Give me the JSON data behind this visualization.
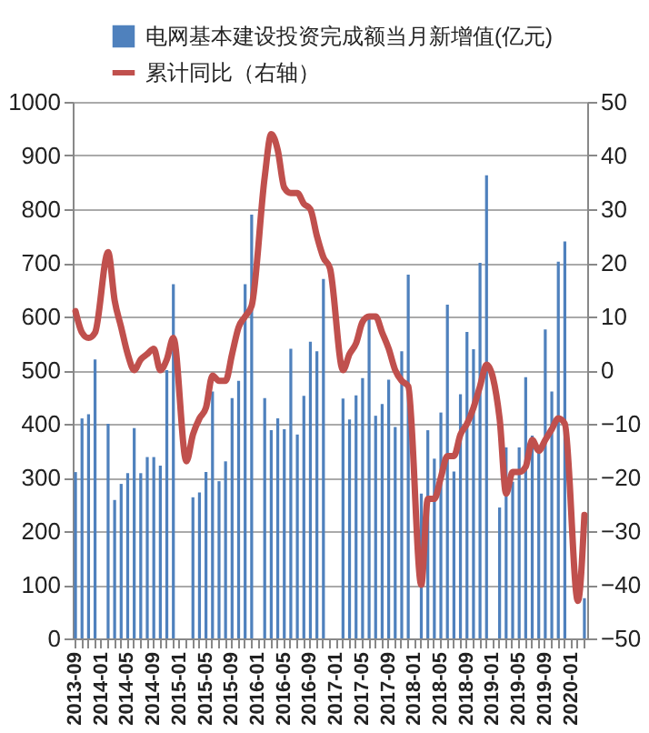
{
  "chart_data": {
    "type": "bar",
    "categories": [
      "2013-09",
      null,
      null,
      null,
      "2014-01",
      null,
      null,
      null,
      "2014-05",
      null,
      null,
      null,
      "2014-09",
      null,
      null,
      null,
      "2015-01",
      null,
      null,
      null,
      "2015-05",
      null,
      null,
      null,
      "2015-09",
      null,
      null,
      null,
      "2016-01",
      null,
      null,
      null,
      "2016-05",
      null,
      null,
      null,
      "2016-09",
      null,
      null,
      null,
      "2017-01",
      null,
      null,
      null,
      "2017-05",
      null,
      null,
      null,
      "2017-09",
      null,
      null,
      null,
      "2018-01",
      null,
      null,
      null,
      "2018-05",
      null,
      null,
      null,
      "2018-09",
      null,
      null,
      null,
      "2019-01",
      null,
      null,
      null,
      "2019-05",
      null,
      null,
      null,
      "2019-09",
      null,
      null,
      null,
      "2020-01",
      null,
      null
    ],
    "series": [
      {
        "name": "电网基本建设投资完成额当月新增值(亿元)",
        "color": "#4f81bd",
        "values": [
          310,
          410,
          418,
          520,
          null,
          400,
          258,
          288,
          308,
          392,
          308,
          338,
          338,
          322,
          500,
          660,
          null,
          null,
          263,
          272,
          310,
          460,
          293,
          330,
          448,
          480,
          660,
          790,
          null,
          448,
          388,
          410,
          390,
          540,
          380,
          452,
          553,
          535,
          670,
          null,
          null,
          447,
          408,
          453,
          485,
          603,
          415,
          437,
          482,
          394,
          535,
          678,
          null,
          270,
          388,
          335,
          421,
          622,
          311,
          455,
          571,
          539,
          700,
          863,
          null,
          244,
          356,
          292,
          356,
          487,
          378,
          351,
          576,
          460,
          702,
          740,
          null,
          null,
          75
        ]
      },
      {
        "name": "累计同比（右轴）",
        "type": "line",
        "axis": "y2",
        "color": "#c0504d",
        "values": [
          11,
          7,
          6,
          7,
          null,
          22,
          13,
          8,
          3,
          0,
          2,
          3,
          4,
          0,
          2,
          6,
          null,
          -17,
          -12,
          -9,
          -7,
          -1,
          -2,
          -2,
          3,
          8,
          10,
          12,
          null,
          36,
          44,
          41,
          34,
          33,
          33,
          31,
          30,
          25,
          21,
          19,
          null,
          0,
          3,
          5,
          9,
          10,
          10,
          7,
          4,
          0,
          -2,
          -3,
          null,
          -40,
          -24,
          -24,
          -20,
          -16,
          -16,
          -12,
          -10,
          -7,
          -3,
          1,
          null,
          -9,
          -23,
          -19,
          -19,
          -18,
          -13,
          -15,
          -13,
          -11,
          -9,
          -10,
          null,
          -43,
          -27
        ]
      }
    ],
    "ylim": [
      0,
      1000
    ],
    "yticks": [
      0,
      100,
      200,
      300,
      400,
      500,
      600,
      700,
      800,
      900,
      1000
    ],
    "y2lim": [
      -50,
      50
    ],
    "y2ticks": [
      -50,
      -40,
      -30,
      -20,
      -10,
      0,
      10,
      20,
      30,
      40,
      50
    ],
    "grid": "y",
    "legend": "top"
  }
}
